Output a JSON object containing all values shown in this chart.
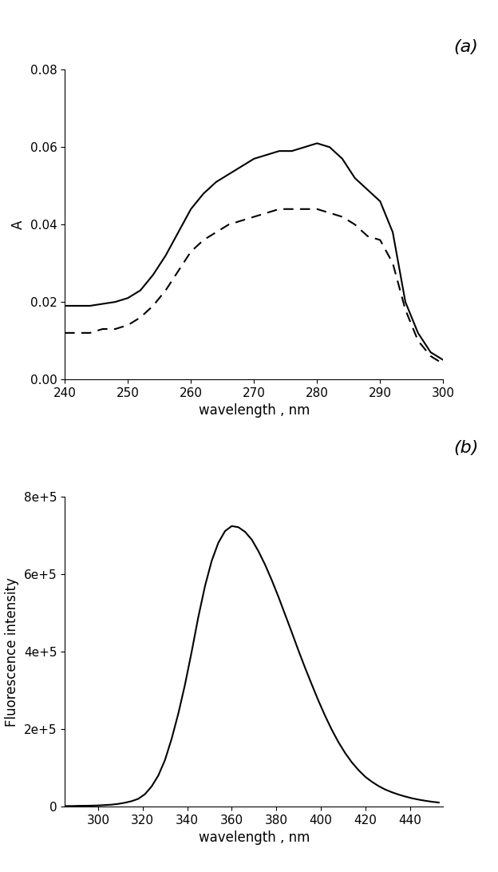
{
  "panel_a": {
    "label": "(a)",
    "xlabel": "wavelength , nm",
    "ylabel": "A",
    "xlim": [
      240,
      300
    ],
    "ylim": [
      0.0,
      0.08
    ],
    "xticks": [
      240,
      250,
      260,
      270,
      280,
      290,
      300
    ],
    "yticks": [
      0.0,
      0.02,
      0.04,
      0.06,
      0.08
    ],
    "solid_x": [
      240,
      242,
      244,
      246,
      248,
      250,
      252,
      254,
      256,
      258,
      260,
      262,
      264,
      266,
      268,
      270,
      272,
      274,
      276,
      278,
      280,
      282,
      284,
      286,
      288,
      290,
      292,
      294,
      296,
      298,
      300
    ],
    "solid_y": [
      0.019,
      0.019,
      0.019,
      0.0195,
      0.02,
      0.021,
      0.023,
      0.027,
      0.032,
      0.038,
      0.044,
      0.048,
      0.051,
      0.053,
      0.055,
      0.057,
      0.058,
      0.059,
      0.059,
      0.06,
      0.061,
      0.06,
      0.057,
      0.052,
      0.049,
      0.046,
      0.038,
      0.02,
      0.012,
      0.007,
      0.005
    ],
    "dashed_x": [
      240,
      242,
      244,
      246,
      248,
      250,
      252,
      254,
      256,
      258,
      260,
      262,
      264,
      266,
      268,
      270,
      272,
      274,
      276,
      278,
      280,
      282,
      284,
      286,
      288,
      290,
      292,
      294,
      296,
      298,
      300
    ],
    "dashed_y": [
      0.012,
      0.012,
      0.012,
      0.013,
      0.013,
      0.014,
      0.016,
      0.019,
      0.023,
      0.028,
      0.033,
      0.036,
      0.038,
      0.04,
      0.041,
      0.042,
      0.043,
      0.044,
      0.044,
      0.044,
      0.044,
      0.043,
      0.042,
      0.04,
      0.037,
      0.036,
      0.03,
      0.018,
      0.01,
      0.006,
      0.004
    ],
    "line_color": "#000000",
    "line_width": 1.5
  },
  "panel_b": {
    "label": "(b)",
    "xlabel": "wavelength , nm",
    "ylabel": "Fluorescence intensity",
    "xlim": [
      285,
      455
    ],
    "ylim": [
      0,
      800000
    ],
    "xticks": [
      300,
      320,
      340,
      360,
      380,
      400,
      420,
      440
    ],
    "yticks": [
      0,
      200000,
      400000,
      600000,
      800000
    ],
    "ytick_labels": [
      "0",
      "2e+5",
      "4e+5",
      "6e+5",
      "8e+5"
    ],
    "x": [
      285,
      288,
      291,
      294,
      297,
      300,
      303,
      306,
      309,
      312,
      315,
      318,
      321,
      324,
      327,
      330,
      333,
      336,
      339,
      342,
      345,
      348,
      351,
      354,
      357,
      360,
      363,
      366,
      369,
      372,
      375,
      378,
      381,
      384,
      387,
      390,
      393,
      396,
      399,
      402,
      405,
      408,
      411,
      414,
      417,
      420,
      423,
      426,
      429,
      432,
      435,
      438,
      441,
      444,
      447,
      450,
      453
    ],
    "y": [
      1500,
      1500,
      2000,
      2200,
      2500,
      3000,
      4000,
      5000,
      7000,
      10000,
      14000,
      20000,
      32000,
      52000,
      80000,
      120000,
      175000,
      240000,
      315000,
      400000,
      490000,
      570000,
      635000,
      682000,
      712000,
      725000,
      722000,
      710000,
      690000,
      660000,
      625000,
      585000,
      542000,
      496000,
      450000,
      403000,
      358000,
      315000,
      273000,
      234000,
      198000,
      166000,
      138000,
      114000,
      94000,
      77000,
      64000,
      53000,
      44000,
      37000,
      31000,
      26000,
      21500,
      18000,
      15000,
      12500,
      10500
    ],
    "line_color": "#000000",
    "line_width": 1.5
  },
  "background_color": "#ffffff",
  "tick_fontsize": 11,
  "axis_label_fontsize": 12,
  "panel_label_fontsize": 16,
  "xlabel_color": "#000000"
}
